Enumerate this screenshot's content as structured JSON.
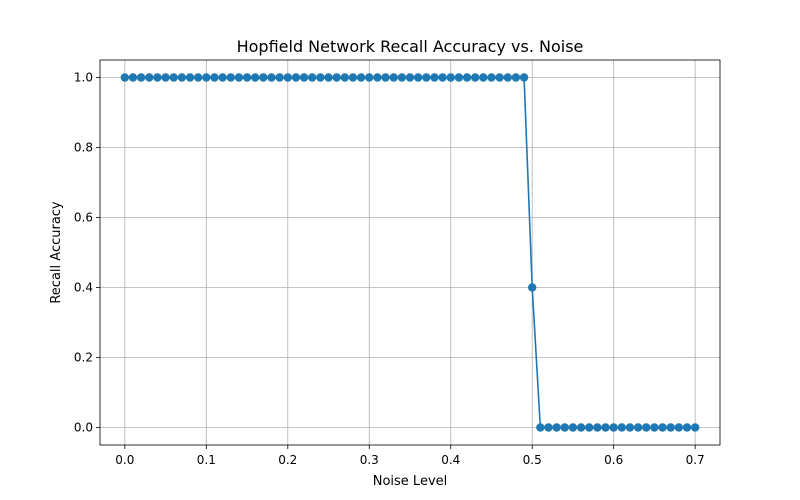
{
  "chart_data": {
    "type": "line",
    "title": "Hopfield Network Recall Accuracy vs. Noise",
    "xlabel": "Noise Level",
    "ylabel": "Recall Accuracy",
    "xlim": [
      -0.0305,
      0.7305
    ],
    "ylim": [
      -0.05,
      1.05
    ],
    "xticks": [
      0.0,
      0.1,
      0.2,
      0.3,
      0.4,
      0.5,
      0.6,
      0.7
    ],
    "xtick_labels": [
      "0.0",
      "0.1",
      "0.2",
      "0.3",
      "0.4",
      "0.5",
      "0.6",
      "0.7"
    ],
    "yticks": [
      0.0,
      0.2,
      0.4,
      0.6,
      0.8,
      1.0
    ],
    "ytick_labels": [
      "0.0",
      "0.2",
      "0.4",
      "0.6",
      "0.8",
      "1.0"
    ],
    "grid": true,
    "series": [
      {
        "color": "#1f77b4",
        "marker": "circle",
        "x": [
          0.0,
          0.01,
          0.02,
          0.03,
          0.04,
          0.05,
          0.06,
          0.07,
          0.08,
          0.09,
          0.1,
          0.11,
          0.12,
          0.13,
          0.14,
          0.15,
          0.16,
          0.17,
          0.18,
          0.19,
          0.2,
          0.21,
          0.22,
          0.23,
          0.24,
          0.25,
          0.26,
          0.27,
          0.28,
          0.29,
          0.3,
          0.31,
          0.32,
          0.33,
          0.34,
          0.35,
          0.36,
          0.37,
          0.38,
          0.39,
          0.4,
          0.41,
          0.42,
          0.43,
          0.44,
          0.45,
          0.46,
          0.47,
          0.48,
          0.49,
          0.5,
          0.51,
          0.52,
          0.53,
          0.54,
          0.55,
          0.56,
          0.57,
          0.58,
          0.59,
          0.6,
          0.61,
          0.62,
          0.63,
          0.64,
          0.65,
          0.66,
          0.67,
          0.68,
          0.69,
          0.7
        ],
        "y": [
          1,
          1,
          1,
          1,
          1,
          1,
          1,
          1,
          1,
          1,
          1,
          1,
          1,
          1,
          1,
          1,
          1,
          1,
          1,
          1,
          1,
          1,
          1,
          1,
          1,
          1,
          1,
          1,
          1,
          1,
          1,
          1,
          1,
          1,
          1,
          1,
          1,
          1,
          1,
          1,
          1,
          1,
          1,
          1,
          1,
          1,
          1,
          1,
          1,
          1,
          0.4,
          0,
          0,
          0,
          0,
          0,
          0,
          0,
          0,
          0,
          0,
          0,
          0,
          0,
          0,
          0,
          0,
          0,
          0,
          0,
          0
        ]
      }
    ]
  }
}
